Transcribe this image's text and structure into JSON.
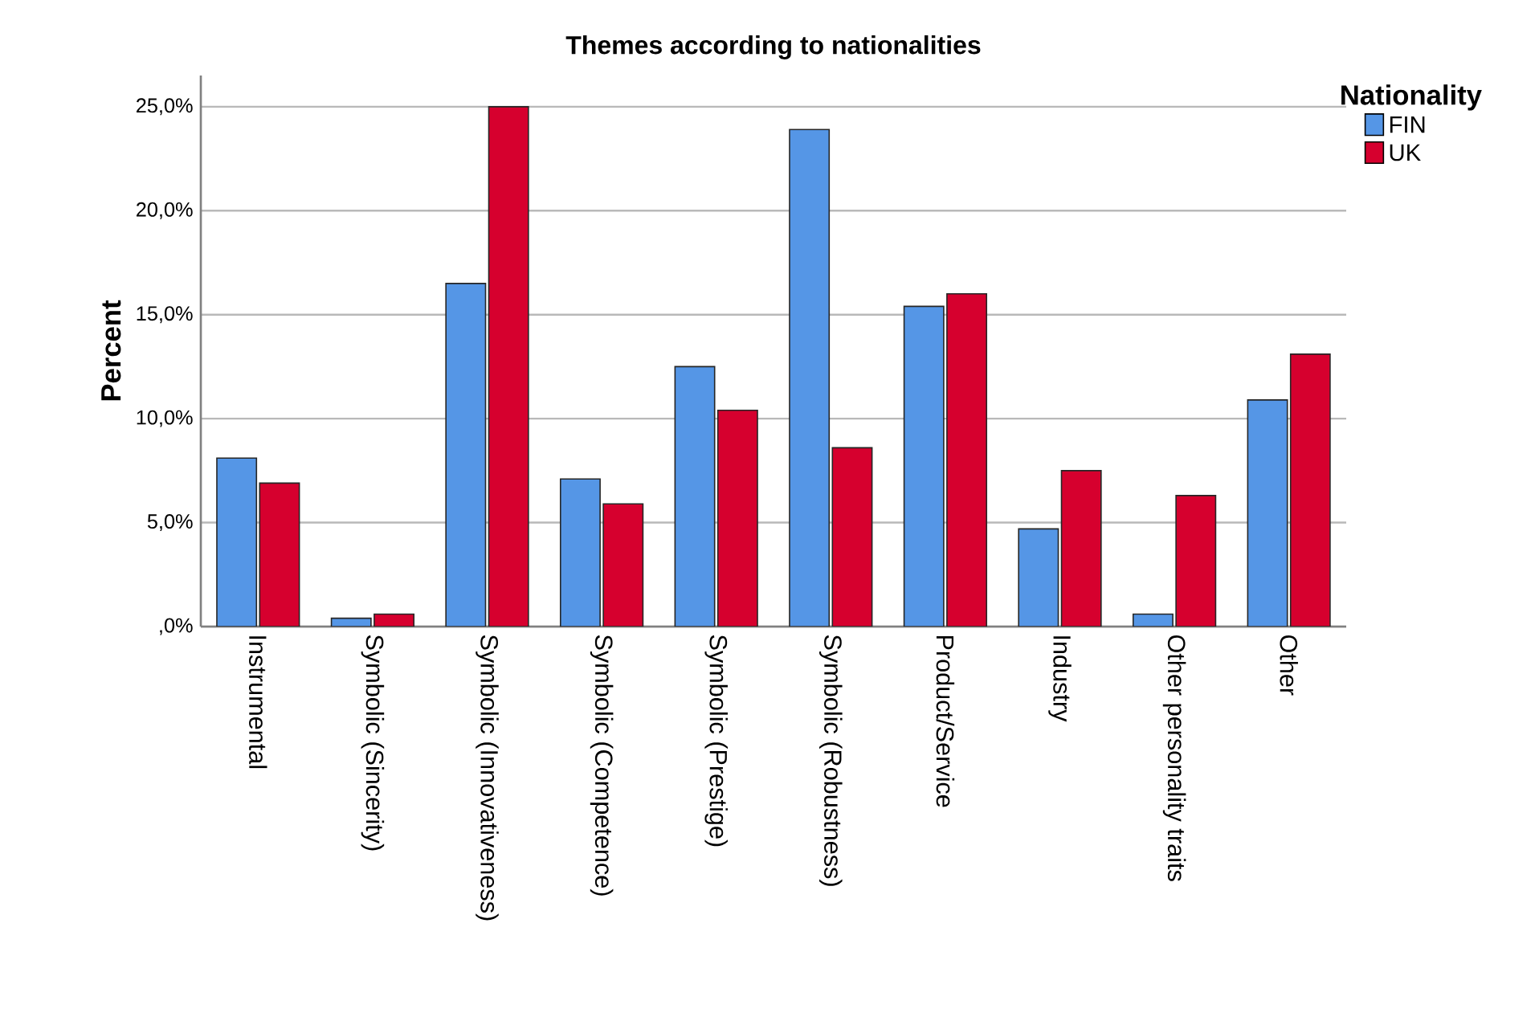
{
  "chart_data": {
    "type": "bar",
    "title": "Themes according to nationalities",
    "ylabel": "Percent",
    "legend_title": "Nationality",
    "categories": [
      "Instrumental",
      "Symbolic (Sincerity)",
      "Symbolic (Innovativeness)",
      "Symbolic (Competence)",
      "Symbolic (Prestige)",
      "Symbolic (Robustness)",
      "Product/Service",
      "Industry",
      "Other personality traits",
      "Other"
    ],
    "series": [
      {
        "name": "FIN",
        "color": "#5596e6",
        "values": [
          8.1,
          0.4,
          16.5,
          7.1,
          12.5,
          23.9,
          15.4,
          4.7,
          0.6,
          10.9
        ]
      },
      {
        "name": "UK",
        "color": "#d6002e",
        "values": [
          6.9,
          0.6,
          25.0,
          5.9,
          10.4,
          8.6,
          16.0,
          7.5,
          6.3,
          13.1
        ]
      }
    ],
    "ylim": [
      0,
      26.5
    ],
    "yticks": [
      {
        "value": 0,
        "label": ",0%"
      },
      {
        "value": 5,
        "label": "5,0%"
      },
      {
        "value": 10,
        "label": "10,0%"
      },
      {
        "value": 15,
        "label": "15,0%"
      },
      {
        "value": 20,
        "label": "20,0%"
      },
      {
        "value": 25,
        "label": "25,0%"
      }
    ],
    "grid": "y",
    "legend": "top right"
  }
}
